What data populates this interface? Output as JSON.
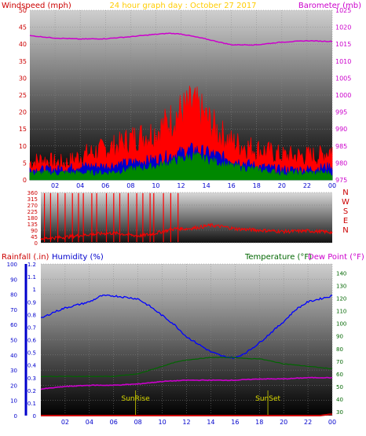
{
  "header": {
    "windspeed_label": "Windspeed (mph)",
    "date_label": "24 hour graph day : October 27 2017",
    "barometer_label": "Barometer (mb)"
  },
  "footer": {
    "rainfall_label": "Rainfall (.in)",
    "humidity_label": "Humidity (%)",
    "temperature_label": "Temperature (°F)",
    "dewpoint_label": "Dew Point (°F)",
    "sunrise_label": "SunRise",
    "sunset_label": "SunSet"
  },
  "colors": {
    "windspeed": "#ff0000",
    "gust": "#ff0000",
    "average_wind": "#0000cc",
    "wind_green": "#008800",
    "barometer": "#cc00cc",
    "direction": "#ff0000",
    "rainfall": "#cc0000",
    "humidity": "#0000ff",
    "temperature": "#006600",
    "dewpoint": "#cc00cc",
    "sun_marker": "#aaaa00",
    "date_text": "#ffcc00"
  },
  "chart_data": [
    {
      "type": "line",
      "name": "wind-barometer",
      "x_ticks": [
        "02",
        "04",
        "06",
        "08",
        "10",
        "12",
        "14",
        "16",
        "18",
        "20",
        "22",
        "00"
      ],
      "left_axis": {
        "label": "Windspeed (mph)",
        "ticks": [
          0,
          5,
          10,
          15,
          20,
          25,
          30,
          35,
          40,
          45,
          50
        ],
        "ylim": [
          0,
          50
        ]
      },
      "right_axis": {
        "label": "Barometer (mb)",
        "ticks": [
          975,
          980,
          985,
          990,
          995,
          1000,
          1005,
          1010,
          1015,
          1020,
          1025
        ],
        "ylim": [
          975,
          1025
        ]
      },
      "series": [
        {
          "key": "gust",
          "color": "#ff0000",
          "axis": "left",
          "hours": [
            0,
            1,
            2,
            3,
            4,
            5,
            6,
            7,
            8,
            9,
            10,
            11,
            12,
            13,
            13.5,
            14,
            15,
            16,
            17,
            18,
            19,
            20,
            21,
            22,
            23,
            24
          ],
          "values": [
            5,
            6,
            5,
            5,
            7,
            8,
            9,
            10,
            12,
            13,
            14,
            17,
            20,
            22,
            20,
            18,
            14,
            11,
            10,
            9,
            8,
            7,
            7,
            7,
            7,
            9
          ]
        },
        {
          "key": "average_wind",
          "color": "#0000cc",
          "axis": "left",
          "hours": [
            0,
            2,
            4,
            6,
            8,
            10,
            12,
            13,
            14,
            16,
            18,
            20,
            22,
            24
          ],
          "values": [
            3,
            3,
            4,
            4,
            5,
            6,
            8,
            9,
            8,
            6,
            4,
            3,
            3,
            4
          ]
        },
        {
          "key": "wind_green",
          "color": "#008800",
          "axis": "left",
          "hours": [
            0,
            2,
            4,
            6,
            8,
            10,
            12,
            13,
            14,
            16,
            18,
            20,
            22,
            24
          ],
          "values": [
            2,
            2,
            2,
            2,
            3,
            4,
            6,
            7,
            6,
            4,
            3,
            2,
            2,
            2
          ]
        },
        {
          "key": "barometer",
          "color": "#cc00cc",
          "axis": "right",
          "hours": [
            0,
            2,
            4,
            6,
            8,
            10,
            11,
            12,
            14,
            16,
            18,
            20,
            22,
            24
          ],
          "values": [
            1017.5,
            1016.8,
            1016.5,
            1016.6,
            1017.2,
            1017.9,
            1018.2,
            1018.0,
            1016.5,
            1014.8,
            1014.8,
            1015.6,
            1016.0,
            1015.8
          ]
        }
      ]
    },
    {
      "type": "line",
      "name": "wind-direction",
      "left_axis": {
        "ticks": [
          0,
          45,
          90,
          135,
          180,
          225,
          270,
          315,
          360
        ],
        "ylim": [
          0,
          360
        ]
      },
      "right_labels": [
        "N",
        "W",
        "S",
        "E",
        "N"
      ],
      "series": [
        {
          "key": "direction",
          "color": "#ff0000",
          "hours": [
            0,
            2,
            4,
            6,
            8,
            9,
            10,
            11,
            12,
            13,
            14,
            15,
            16,
            18,
            20,
            22,
            24
          ],
          "values": [
            30,
            40,
            60,
            70,
            50,
            60,
            80,
            100,
            100,
            110,
            125,
            115,
            100,
            90,
            80,
            85,
            75
          ],
          "spike_hours": [
            0.3,
            0.8,
            1.4,
            2.0,
            2.6,
            3.1,
            3.5,
            4.2,
            4.6,
            5.4,
            6.0,
            6.5,
            7.2,
            7.9,
            8.4,
            9.0,
            9.3,
            10.1,
            10.7,
            11.3
          ]
        }
      ]
    },
    {
      "type": "line",
      "name": "temperature-humidity-rain",
      "x_ticks": [
        "02",
        "04",
        "06",
        "08",
        "10",
        "12",
        "14",
        "16",
        "18",
        "20",
        "22",
        "00"
      ],
      "rain_axis": {
        "label": "Rainfall (.in)",
        "ticks": [
          0,
          0.1,
          0.2,
          0.3,
          0.4,
          0.5,
          0.6,
          0.7,
          0.8,
          0.9,
          1,
          1.1,
          1.2
        ],
        "ylim": [
          0,
          1.2
        ]
      },
      "humidity_axis": {
        "label": "Humidity (%)",
        "ticks": [
          0,
          10,
          20,
          30,
          40,
          50,
          60,
          70,
          80,
          90,
          100
        ],
        "ylim": [
          0,
          100
        ]
      },
      "temp_axis": {
        "label": "Temperature (°F)",
        "ticks": [
          30,
          40,
          50,
          60,
          70,
          80,
          90,
          100,
          110,
          120,
          130,
          140
        ],
        "ylim": [
          27,
          147
        ]
      },
      "series": [
        {
          "key": "humidity",
          "color": "#0000ff",
          "axis": "humidity",
          "hours": [
            0,
            1,
            2,
            3,
            4,
            5,
            6,
            7,
            8,
            9,
            10,
            11,
            12,
            13,
            14,
            15,
            16,
            17,
            18,
            19,
            20,
            21,
            22,
            23,
            24
          ],
          "values": [
            64,
            68,
            71,
            73,
            75,
            79,
            79,
            78,
            77,
            72,
            66,
            60,
            52,
            47,
            42,
            39,
            38,
            42,
            48,
            55,
            62,
            70,
            75,
            77,
            79
          ]
        },
        {
          "key": "temperature",
          "color": "#006600",
          "axis": "temp",
          "hours": [
            0,
            2,
            4,
            6,
            8,
            9,
            10,
            11,
            12,
            13,
            14,
            15,
            16,
            17,
            18,
            19,
            20,
            22,
            24
          ],
          "values": [
            58,
            58,
            58,
            58,
            60,
            63,
            66,
            69,
            71,
            72,
            73,
            73,
            73,
            72,
            72,
            70,
            68,
            66,
            64
          ]
        },
        {
          "key": "dewpoint",
          "color": "#cc00cc",
          "axis": "temp",
          "hours": [
            0,
            2,
            4,
            6,
            8,
            10,
            12,
            14,
            16,
            18,
            20,
            22,
            24
          ],
          "values": [
            48,
            50,
            51,
            51,
            52,
            54,
            55,
            55,
            55,
            56,
            56,
            57,
            57
          ]
        },
        {
          "key": "rainfall",
          "color": "#cc0000",
          "axis": "rain",
          "hours": [
            0,
            23,
            23.8,
            24
          ],
          "values": [
            0,
            0,
            0.01,
            0.01
          ]
        }
      ],
      "sunrise_hour": 7.8,
      "sunset_hour": 18.7
    }
  ]
}
